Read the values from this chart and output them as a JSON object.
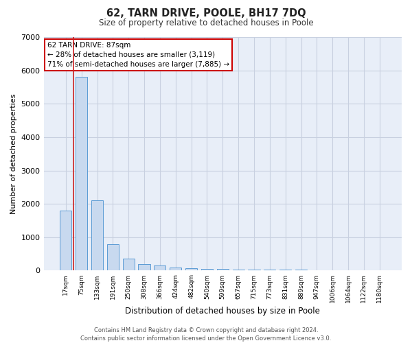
{
  "title": "62, TARN DRIVE, POOLE, BH17 7DQ",
  "subtitle": "Size of property relative to detached houses in Poole",
  "xlabel": "Distribution of detached houses by size in Poole",
  "ylabel": "Number of detached properties",
  "bar_labels": [
    "17sqm",
    "75sqm",
    "133sqm",
    "191sqm",
    "250sqm",
    "308sqm",
    "366sqm",
    "424sqm",
    "482sqm",
    "540sqm",
    "599sqm",
    "657sqm",
    "715sqm",
    "773sqm",
    "831sqm",
    "889sqm",
    "947sqm",
    "1006sqm",
    "1064sqm",
    "1122sqm",
    "1180sqm"
  ],
  "bar_values": [
    1800,
    5800,
    2100,
    800,
    350,
    200,
    150,
    100,
    80,
    60,
    50,
    40,
    35,
    30,
    25,
    20,
    15,
    10,
    8,
    5,
    3
  ],
  "bar_color": "#c8d9ef",
  "bar_edge_color": "#5b9bd5",
  "grid_color": "#c8d0e0",
  "background_color": "#e8eef8",
  "red_line_x": 0.5,
  "annotation_title": "62 TARN DRIVE: 87sqm",
  "annotation_line1": "← 28% of detached houses are smaller (3,119)",
  "annotation_line2": "71% of semi-detached houses are larger (7,885) →",
  "annotation_box_color": "#ffffff",
  "annotation_box_edge": "#cc0000",
  "ylim": [
    0,
    7000
  ],
  "footer1": "Contains HM Land Registry data © Crown copyright and database right 2024.",
  "footer2": "Contains public sector information licensed under the Open Government Licence v3.0."
}
